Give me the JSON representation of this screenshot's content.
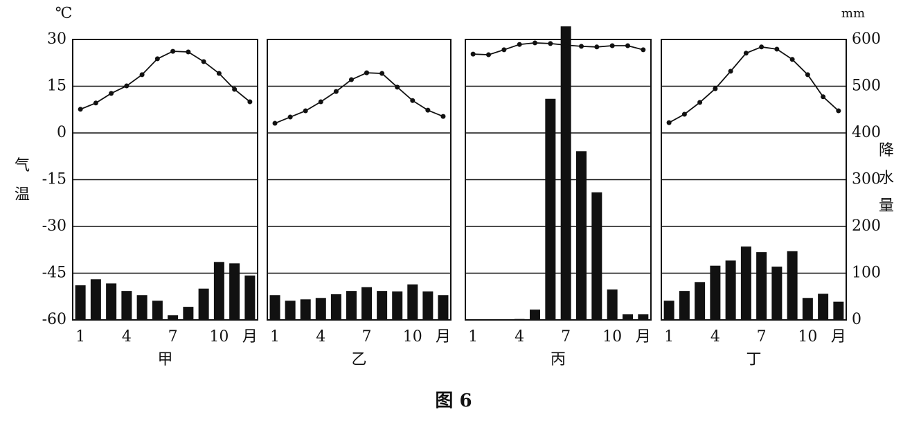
{
  "axes": {
    "yunit": "℃",
    "ylabel": "气温",
    "ylim": [
      -60,
      30
    ],
    "yticks": [
      30,
      15,
      0,
      -15,
      -30,
      -45,
      -60
    ],
    "y2unit": "mm",
    "y2label": "降水量",
    "y2lim": [
      0,
      600
    ],
    "y2ticks": [
      600,
      500,
      400,
      300,
      200,
      100,
      0
    ]
  },
  "caption": "图 6",
  "chart_data": [
    {
      "type": "climate",
      "title": "甲",
      "categories": [
        "1",
        null,
        null,
        "4",
        null,
        null,
        "7",
        null,
        null,
        "10",
        null,
        "月"
      ],
      "temperature": [
        7.6,
        9.6,
        12.7,
        15.1,
        18.7,
        23.8,
        26.2,
        26,
        22.9,
        19.1,
        14,
        10
      ],
      "precipitation": [
        74,
        87,
        78,
        62,
        53,
        41,
        10,
        28,
        67,
        124,
        121,
        95
      ]
    },
    {
      "type": "climate",
      "title": "乙",
      "categories": [
        "1",
        null,
        null,
        "4",
        null,
        null,
        "7",
        null,
        null,
        "10",
        null,
        "月"
      ],
      "temperature": [
        3.1,
        5.1,
        7.1,
        10,
        13.3,
        17.1,
        19.3,
        19.1,
        14.7,
        10.4,
        7.3,
        5.3
      ],
      "precipitation": [
        53,
        41,
        44,
        47,
        55,
        62,
        70,
        62,
        61,
        76,
        61,
        53
      ]
    },
    {
      "type": "climate",
      "title": "丙",
      "categories": [
        "1",
        null,
        null,
        "4",
        null,
        null,
        "7",
        null,
        null,
        "10",
        null,
        "月"
      ],
      "temperature": [
        25.3,
        25.1,
        26.7,
        28.4,
        28.9,
        28.7,
        28.2,
        27.8,
        27.6,
        28,
        28,
        26.7
      ],
      "precipitation": [
        0,
        0,
        0,
        2,
        22,
        473,
        628,
        361,
        273,
        65,
        12,
        12
      ]
    },
    {
      "type": "climate",
      "title": "丁",
      "categories": [
        "1",
        null,
        null,
        "4",
        null,
        null,
        "7",
        null,
        null,
        "10",
        null,
        "月"
      ],
      "temperature": [
        3.3,
        6,
        9.8,
        14.2,
        19.8,
        25.6,
        27.6,
        26.9,
        23.6,
        18.7,
        11.6,
        7.1
      ],
      "precipitation": [
        41,
        62,
        81,
        116,
        127,
        157,
        145,
        114,
        147,
        47,
        56,
        39
      ]
    }
  ]
}
